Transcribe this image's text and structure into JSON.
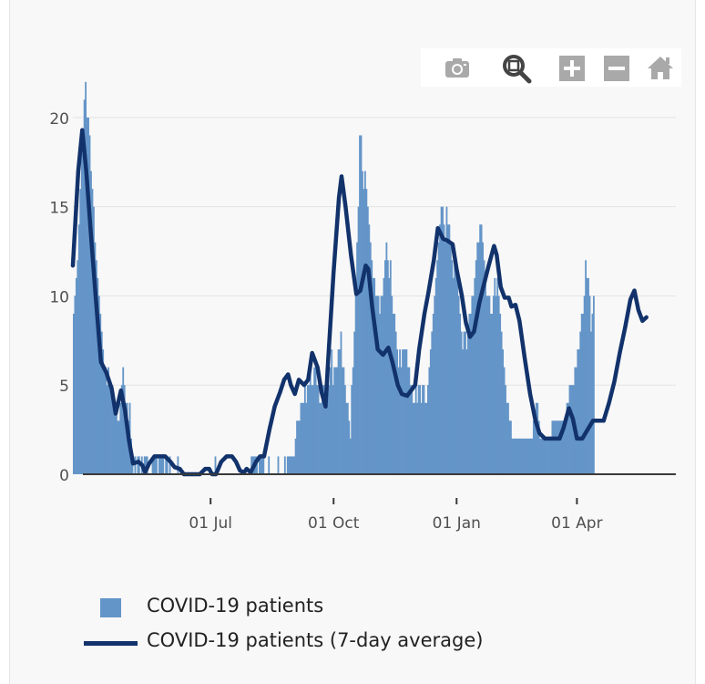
{
  "toolbar": {
    "buttons": [
      {
        "icon": "camera-icon"
      },
      {
        "icon": "zoom-icon"
      },
      {
        "icon": "zoom-in-icon"
      },
      {
        "icon": "zoom-out-icon"
      },
      {
        "icon": "home-icon"
      }
    ]
  },
  "legend": {
    "bar_label": "COVID-19 patients",
    "line_label": "COVID-19 patients (7-day average)"
  },
  "colors": {
    "bar": "#6495c8",
    "line": "#12326b",
    "grid": "#e3e3e3",
    "axis": "#3a3a3a",
    "tick_text": "#505050",
    "modebar_icon": "#a9a9a9",
    "modebar_active": "#444444"
  },
  "chart_data": {
    "type": "bar",
    "x_type": "date",
    "x_range": [
      "2020-03-20",
      "2021-06-14"
    ],
    "ylim": [
      0,
      22.5
    ],
    "grid": true,
    "legend_position": "bottom",
    "x_ticks": [
      {
        "date": "2020-07-01",
        "label": "01 Jul"
      },
      {
        "date": "2020-10-01",
        "label": "01 Oct"
      },
      {
        "date": "2021-01-01",
        "label": "01 Jan"
      },
      {
        "date": "2021-04-01",
        "label": "01 Apr"
      }
    ],
    "y_ticks": [
      {
        "value": 0,
        "label": "0"
      },
      {
        "value": 5,
        "label": "5"
      },
      {
        "value": 10,
        "label": "10"
      },
      {
        "value": 15,
        "label": "15"
      },
      {
        "value": 20,
        "label": "20"
      }
    ],
    "bars_start_date": "2020-03-20",
    "series": [
      {
        "name": "COVID-19 patients",
        "type": "bar",
        "values": [
          9,
          10,
          11,
          12,
          14,
          16,
          18,
          19,
          21,
          22,
          20,
          20,
          19,
          17,
          16,
          15,
          13,
          12,
          11,
          10,
          9,
          8,
          7,
          6,
          6,
          5,
          6,
          5,
          5,
          5,
          4,
          4,
          4,
          3,
          3,
          4,
          5,
          6,
          5,
          4,
          4,
          3,
          4,
          2,
          1,
          0,
          1,
          0,
          1,
          1,
          0,
          1,
          0,
          1,
          1,
          1,
          0,
          0,
          0,
          1,
          1,
          1,
          1,
          0,
          1,
          1,
          1,
          1,
          0,
          1,
          1,
          0,
          1,
          0,
          0,
          0,
          0,
          0,
          1,
          0,
          0,
          0,
          0,
          0,
          0,
          0,
          0,
          0,
          0,
          0,
          0,
          0,
          0,
          0,
          0,
          0,
          0,
          0,
          0,
          0,
          0,
          0,
          0,
          0,
          0,
          0,
          1,
          0,
          0,
          0,
          0,
          0,
          0,
          0,
          0,
          0,
          0,
          0,
          0,
          0,
          0,
          0,
          0,
          0,
          0,
          0,
          0,
          0,
          0,
          0,
          0,
          0,
          0,
          1,
          1,
          1,
          1,
          1,
          0,
          1,
          1,
          1,
          1,
          0,
          0,
          0,
          1,
          0,
          0,
          0,
          0,
          0,
          0,
          1,
          0,
          0,
          0,
          0,
          1,
          0,
          1,
          1,
          1,
          1,
          1,
          1,
          2,
          3,
          3,
          3,
          4,
          4,
          4,
          5,
          4,
          5,
          5,
          6,
          5,
          5,
          6,
          6,
          5,
          5,
          4,
          4,
          5,
          5,
          4,
          6,
          5,
          5,
          6,
          7,
          5,
          6,
          6,
          6,
          7,
          7,
          8,
          6,
          6,
          5,
          4,
          4,
          3,
          2,
          5,
          6,
          8,
          10,
          13,
          15,
          19,
          19,
          17,
          16,
          17,
          16,
          15,
          14,
          13,
          12,
          11,
          11,
          10,
          10,
          10,
          9,
          10,
          10,
          11,
          12,
          13,
          12,
          11,
          12,
          10,
          9,
          9,
          8,
          7,
          6,
          7,
          6,
          7,
          7,
          7,
          7,
          6,
          6,
          5,
          5,
          4,
          4,
          5,
          4,
          5,
          5,
          4,
          5,
          5,
          4,
          4,
          5,
          6,
          7,
          8,
          9,
          10,
          11,
          12,
          13,
          14,
          15,
          15,
          14,
          13,
          15,
          14,
          14,
          13,
          12,
          11,
          12,
          12,
          11,
          10,
          9,
          8,
          7,
          8,
          8,
          7,
          8,
          9,
          9,
          10,
          10,
          11,
          12,
          13,
          13,
          14,
          14,
          13,
          12,
          11,
          10,
          10,
          10,
          9,
          9,
          10,
          11,
          10,
          11,
          10,
          9,
          8,
          7,
          6,
          5,
          4,
          4,
          3,
          3,
          2,
          2,
          2,
          2,
          2,
          2,
          2,
          2,
          2,
          2,
          2,
          2,
          2,
          2,
          2,
          2,
          3,
          3,
          4,
          4,
          3,
          2,
          2,
          2,
          2,
          2,
          2,
          2,
          2,
          2,
          3,
          3,
          3,
          3,
          3,
          3,
          3,
          3,
          3,
          3,
          3,
          4,
          4,
          5,
          5,
          5,
          5,
          6,
          6,
          7,
          7,
          8,
          9,
          9,
          10,
          12,
          11,
          11,
          10,
          8,
          9,
          10
        ]
      },
      {
        "name": "COVID-19 patients (7-day average)",
        "type": "line",
        "points": [
          [
            "2020-03-20",
            11.7
          ],
          [
            "2020-03-24",
            17.0
          ],
          [
            "2020-03-27",
            19.3
          ],
          [
            "2020-03-30",
            17.0
          ],
          [
            "2020-04-03",
            13.0
          ],
          [
            "2020-04-06",
            10.0
          ],
          [
            "2020-04-10",
            6.3
          ],
          [
            "2020-04-14",
            5.7
          ],
          [
            "2020-04-18",
            4.8
          ],
          [
            "2020-04-21",
            3.4
          ],
          [
            "2020-04-25",
            4.7
          ],
          [
            "2020-04-28",
            3.6
          ],
          [
            "2020-05-01",
            1.9
          ],
          [
            "2020-05-04",
            0.6
          ],
          [
            "2020-05-08",
            0.7
          ],
          [
            "2020-05-11",
            0.5
          ],
          [
            "2020-05-13",
            0.1
          ],
          [
            "2020-05-16",
            0.6
          ],
          [
            "2020-05-20",
            1.0
          ],
          [
            "2020-05-24",
            1.0
          ],
          [
            "2020-05-28",
            1.0
          ],
          [
            "2020-06-01",
            0.7
          ],
          [
            "2020-06-04",
            0.4
          ],
          [
            "2020-06-08",
            0.3
          ],
          [
            "2020-06-11",
            0.0
          ],
          [
            "2020-06-15",
            0.0
          ],
          [
            "2020-06-19",
            0.0
          ],
          [
            "2020-06-23",
            0.0
          ],
          [
            "2020-06-27",
            0.3
          ],
          [
            "2020-06-30",
            0.3
          ],
          [
            "2020-07-02",
            0.0
          ],
          [
            "2020-07-05",
            0.0
          ],
          [
            "2020-07-09",
            0.7
          ],
          [
            "2020-07-13",
            1.0
          ],
          [
            "2020-07-17",
            1.0
          ],
          [
            "2020-07-20",
            0.7
          ],
          [
            "2020-07-23",
            0.2
          ],
          [
            "2020-07-26",
            0.1
          ],
          [
            "2020-07-28",
            0.3
          ],
          [
            "2020-07-31",
            0.1
          ],
          [
            "2020-08-04",
            0.7
          ],
          [
            "2020-08-07",
            1.0
          ],
          [
            "2020-08-10",
            1.0
          ],
          [
            "2020-08-14",
            2.5
          ],
          [
            "2020-08-18",
            3.8
          ],
          [
            "2020-08-22",
            4.6
          ],
          [
            "2020-08-25",
            5.3
          ],
          [
            "2020-08-28",
            5.6
          ],
          [
            "2020-08-30",
            5.0
          ],
          [
            "2020-09-02",
            4.5
          ],
          [
            "2020-09-05",
            5.3
          ],
          [
            "2020-09-09",
            5.0
          ],
          [
            "2020-09-12",
            5.3
          ],
          [
            "2020-09-15",
            6.8
          ],
          [
            "2020-09-19",
            6.0
          ],
          [
            "2020-09-22",
            4.6
          ],
          [
            "2020-09-25",
            3.8
          ],
          [
            "2020-09-27",
            6.5
          ],
          [
            "2020-10-01",
            11.3
          ],
          [
            "2020-10-05",
            15.5
          ],
          [
            "2020-10-07",
            16.7
          ],
          [
            "2020-10-10",
            15.0
          ],
          [
            "2020-10-14",
            12.3
          ],
          [
            "2020-10-18",
            10.1
          ],
          [
            "2020-10-21",
            10.3
          ],
          [
            "2020-10-25",
            11.7
          ],
          [
            "2020-10-27",
            11.5
          ],
          [
            "2020-10-30",
            9.3
          ],
          [
            "2020-11-03",
            7.0
          ],
          [
            "2020-11-07",
            6.7
          ],
          [
            "2020-11-11",
            7.1
          ],
          [
            "2020-11-14",
            6.3
          ],
          [
            "2020-11-18",
            5.0
          ],
          [
            "2020-11-21",
            4.5
          ],
          [
            "2020-11-25",
            4.4
          ],
          [
            "2020-11-28",
            4.7
          ],
          [
            "2020-12-01",
            5.0
          ],
          [
            "2020-12-04",
            7.0
          ],
          [
            "2020-12-08",
            9.0
          ],
          [
            "2020-12-11",
            10.2
          ],
          [
            "2020-12-15",
            12.0
          ],
          [
            "2020-12-18",
            13.8
          ],
          [
            "2020-12-22",
            13.2
          ],
          [
            "2020-12-25",
            13.1
          ],
          [
            "2020-12-29",
            12.9
          ],
          [
            "2021-01-01",
            11.5
          ],
          [
            "2021-01-05",
            10.0
          ],
          [
            "2021-01-08",
            8.5
          ],
          [
            "2021-01-11",
            7.7
          ],
          [
            "2021-01-14",
            8.0
          ],
          [
            "2021-01-18",
            9.6
          ],
          [
            "2021-01-21",
            10.5
          ],
          [
            "2021-01-25",
            11.7
          ],
          [
            "2021-01-29",
            12.8
          ],
          [
            "2021-01-31",
            12.3
          ],
          [
            "2021-02-03",
            10.5
          ],
          [
            "2021-02-06",
            9.9
          ],
          [
            "2021-02-09",
            9.9
          ],
          [
            "2021-02-11",
            9.4
          ],
          [
            "2021-02-14",
            9.5
          ],
          [
            "2021-02-17",
            8.6
          ],
          [
            "2021-02-21",
            6.5
          ],
          [
            "2021-02-25",
            4.5
          ],
          [
            "2021-03-01",
            3.0
          ],
          [
            "2021-03-04",
            2.3
          ],
          [
            "2021-03-08",
            2.0
          ],
          [
            "2021-03-12",
            2.0
          ],
          [
            "2021-03-16",
            2.0
          ],
          [
            "2021-03-19",
            2.0
          ],
          [
            "2021-03-22",
            2.6
          ],
          [
            "2021-03-26",
            3.7
          ],
          [
            "2021-03-29",
            3.1
          ],
          [
            "2021-04-01",
            2.0
          ],
          [
            "2021-04-05",
            2.0
          ],
          [
            "2021-04-09",
            2.5
          ],
          [
            "2021-04-13",
            3.0
          ],
          [
            "2021-04-17",
            3.0
          ],
          [
            "2021-04-21",
            3.0
          ],
          [
            "2021-04-25",
            4.0
          ],
          [
            "2021-04-29",
            5.2
          ],
          [
            "2021-05-03",
            6.8
          ],
          [
            "2021-05-07",
            8.2
          ],
          [
            "2021-05-11",
            9.8
          ],
          [
            "2021-05-14",
            10.3
          ],
          [
            "2021-05-17",
            9.2
          ],
          [
            "2021-05-20",
            8.6
          ],
          [
            "2021-05-23",
            8.8
          ]
        ]
      }
    ]
  }
}
